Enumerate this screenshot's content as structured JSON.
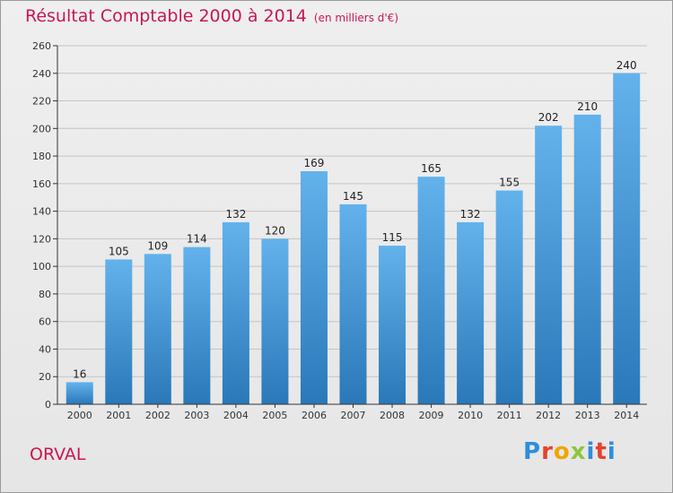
{
  "header": {
    "title": "Résultat Comptable 2000 à 2014",
    "subtitle": "(en milliers d'€)"
  },
  "footer": {
    "place": "ORVAL",
    "logo_letters": [
      "P",
      "r",
      "o",
      "x",
      "i",
      "t",
      "i"
    ],
    "logo_colors": [
      "#2f8ed8",
      "#e5432d",
      "#f2a500",
      "#8dc63f",
      "#2f8ed8",
      "#e5432d",
      "#2f8ed8"
    ]
  },
  "colors": {
    "title": "#c8174f",
    "bar_top": "#63b2ec",
    "bar_bottom": "#2a78b8",
    "grid": "#c4c4c4",
    "axis": "#333333"
  },
  "chart_data": {
    "type": "bar",
    "title": "Résultat Comptable 2000 à 2014",
    "xlabel": "",
    "ylabel": "",
    "ylim": [
      0,
      260
    ],
    "ytick_step": 20,
    "grid": true,
    "categories": [
      "2000",
      "2001",
      "2002",
      "2003",
      "2004",
      "2005",
      "2006",
      "2007",
      "2008",
      "2009",
      "2010",
      "2011",
      "2012",
      "2013",
      "2014"
    ],
    "values": [
      16,
      105,
      109,
      114,
      132,
      120,
      169,
      145,
      115,
      165,
      132,
      155,
      202,
      210,
      240
    ]
  }
}
